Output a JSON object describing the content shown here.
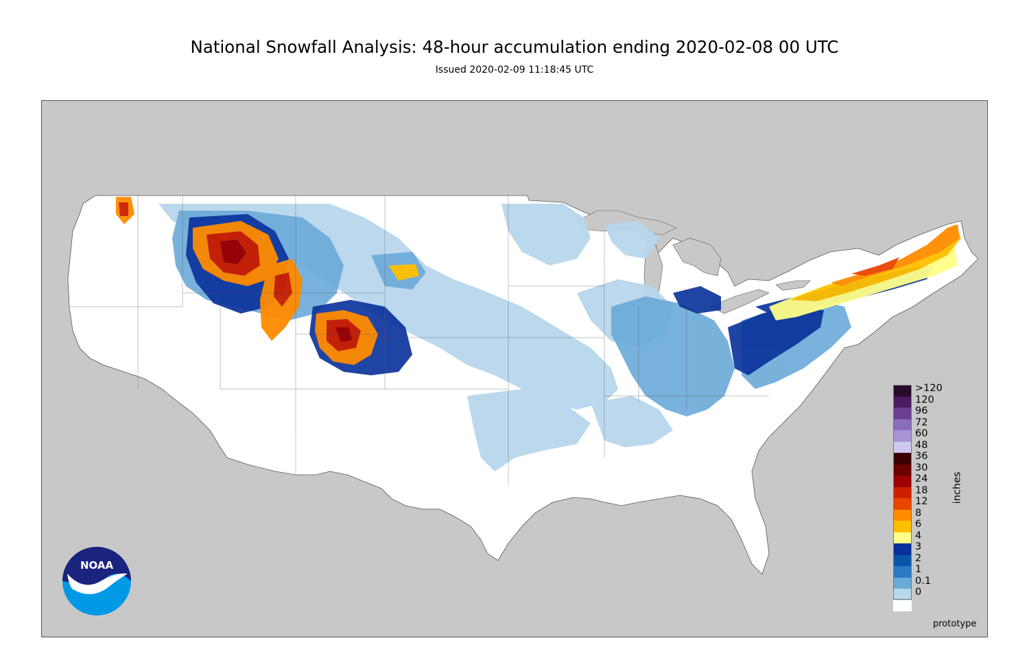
{
  "title": "National Snowfall Analysis: 48-hour accumulation ending 2020-02-08 00 UTC",
  "subtitle": "Issued 2020-02-09 11:18:45 UTC",
  "footer_note": "prototype",
  "logo_text": "NOAA",
  "legend": {
    "units": "inches",
    "items": [
      {
        "label": ">120",
        "color": "#2a0a2e"
      },
      {
        "label": "120",
        "color": "#4b1b61"
      },
      {
        "label": "96",
        "color": "#6a3f92"
      },
      {
        "label": "72",
        "color": "#8a6cba"
      },
      {
        "label": "60",
        "color": "#a893d8"
      },
      {
        "label": "48",
        "color": "#cfc8f0"
      },
      {
        "label": "36",
        "color": "#3d0000"
      },
      {
        "label": "30",
        "color": "#6b0000"
      },
      {
        "label": "24",
        "color": "#9c0000"
      },
      {
        "label": "18",
        "color": "#cc1f00"
      },
      {
        "label": "12",
        "color": "#e84500"
      },
      {
        "label": "8",
        "color": "#ff8c00"
      },
      {
        "label": "6",
        "color": "#ffc000"
      },
      {
        "label": "4",
        "color": "#ffff88"
      },
      {
        "label": "3",
        "color": "#08309a"
      },
      {
        "label": "2",
        "color": "#0a55a8"
      },
      {
        "label": "1",
        "color": "#2c78c2"
      },
      {
        "label": "0.1",
        "color": "#6aaad8"
      },
      {
        "label": "0",
        "color": "#b8d6ec"
      }
    ],
    "base_color": "#ffffff",
    "light_color": "#e3eef8"
  },
  "colors": {
    "ocean": "#c8c8c8",
    "land": "#ffffff",
    "border": "#555555"
  }
}
